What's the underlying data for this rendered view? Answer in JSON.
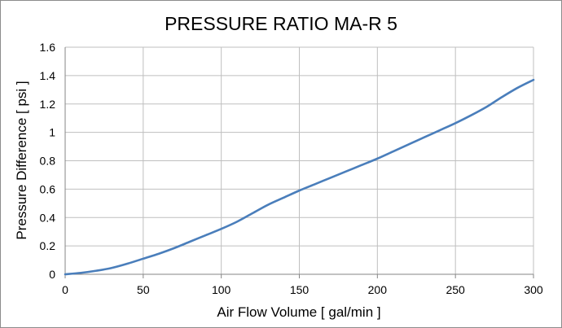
{
  "chart_data": {
    "type": "line",
    "title": "PRESSURE RATIO MA-R 5",
    "xlabel": "Air Flow Volume [ gal/min ]",
    "ylabel": "Pressure Difference [ psi ]",
    "xlim": [
      0,
      300
    ],
    "ylim": [
      0,
      1.6
    ],
    "x_ticks": [
      "0",
      "50",
      "100",
      "150",
      "200",
      "250",
      "300"
    ],
    "y_ticks": [
      "0",
      "0.2",
      "0.4",
      "0.6",
      "0.8",
      "1",
      "1.2",
      "1.4",
      "1.6"
    ],
    "grid": true,
    "legend": "none",
    "series": [
      {
        "color": "#4a7ebb",
        "x": [
          0,
          10,
          20,
          30,
          40,
          50,
          60,
          70,
          80,
          90,
          100,
          110,
          120,
          130,
          140,
          150,
          160,
          170,
          180,
          190,
          200,
          210,
          220,
          230,
          240,
          250,
          260,
          270,
          280,
          290,
          300
        ],
        "y": [
          0,
          0.01,
          0.025,
          0.045,
          0.075,
          0.11,
          0.145,
          0.185,
          0.23,
          0.275,
          0.32,
          0.37,
          0.43,
          0.49,
          0.54,
          0.59,
          0.635,
          0.68,
          0.725,
          0.77,
          0.815,
          0.865,
          0.915,
          0.965,
          1.015,
          1.065,
          1.12,
          1.18,
          1.25,
          1.315,
          1.37
        ]
      }
    ]
  }
}
